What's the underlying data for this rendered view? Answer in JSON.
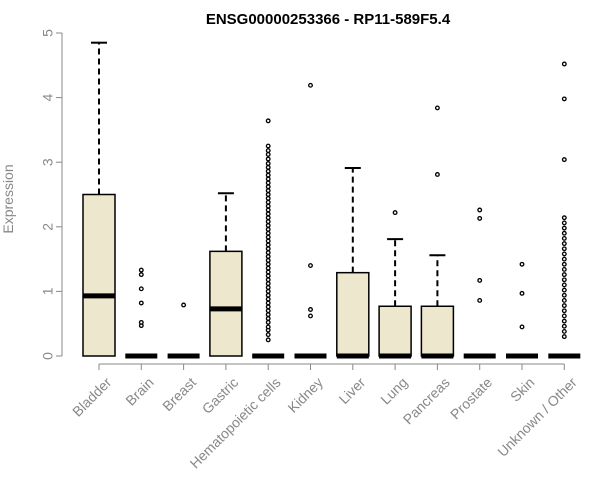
{
  "chart_data": {
    "type": "boxplot",
    "title": "ENSG00000253366 - RP11-589F5.4",
    "ylabel": "Expression",
    "xlabel": "",
    "ylim": [
      0,
      5
    ],
    "yticks": [
      0,
      1,
      2,
      3,
      4,
      5
    ],
    "box_color": "#ede7cd",
    "categories": [
      "Bladder",
      "Brain",
      "Breast",
      "Gastric",
      "Hematopoietic cells",
      "Kidney",
      "Liver",
      "Lung",
      "Pancreas",
      "Prostate",
      "Skin",
      "Unknown / Other"
    ],
    "boxes": [
      {
        "category": "Bladder",
        "q1": 0,
        "median": 0.93,
        "q3": 2.5,
        "whisker_low": 0,
        "whisker_high": 4.85,
        "outliers": []
      },
      {
        "category": "Brain",
        "q1": 0,
        "median": 0,
        "q3": 0,
        "whisker_low": 0,
        "whisker_high": 0,
        "outliers": [
          0.47,
          0.52,
          0.82,
          1.04,
          1.26,
          1.33
        ]
      },
      {
        "category": "Breast",
        "q1": 0,
        "median": 0,
        "q3": 0,
        "whisker_low": 0,
        "whisker_high": 0,
        "outliers": [
          0.79
        ]
      },
      {
        "category": "Gastric",
        "q1": 0,
        "median": 0.73,
        "q3": 1.62,
        "whisker_low": 0,
        "whisker_high": 2.52,
        "outliers": []
      },
      {
        "category": "Hematopoietic cells",
        "q1": 0,
        "median": 0,
        "q3": 0,
        "whisker_low": 0,
        "whisker_high": 0,
        "outliers": [
          0.25,
          0.33,
          0.4,
          0.45,
          0.52,
          0.58,
          0.64,
          0.7,
          0.76,
          0.82,
          0.88,
          0.94,
          1.0,
          1.06,
          1.12,
          1.18,
          1.24,
          1.3,
          1.36,
          1.42,
          1.48,
          1.54,
          1.6,
          1.66,
          1.72,
          1.78,
          1.84,
          1.9,
          1.96,
          2.02,
          2.08,
          2.14,
          2.2,
          2.26,
          2.32,
          2.38,
          2.44,
          2.5,
          2.56,
          2.62,
          2.68,
          2.74,
          2.8,
          2.86,
          2.92,
          2.98,
          3.05,
          3.12,
          3.18,
          3.25,
          3.64
        ]
      },
      {
        "category": "Kidney",
        "q1": 0,
        "median": 0,
        "q3": 0,
        "whisker_low": 0,
        "whisker_high": 0,
        "outliers": [
          0.62,
          0.72,
          1.4,
          4.19
        ]
      },
      {
        "category": "Liver",
        "q1": 0,
        "median": 0,
        "q3": 1.29,
        "whisker_low": 0,
        "whisker_high": 2.91,
        "outliers": []
      },
      {
        "category": "Lung",
        "q1": 0,
        "median": 0,
        "q3": 0.77,
        "whisker_low": 0,
        "whisker_high": 1.81,
        "outliers": [
          2.22
        ]
      },
      {
        "category": "Pancreas",
        "q1": 0,
        "median": 0,
        "q3": 0.77,
        "whisker_low": 0,
        "whisker_high": 1.56,
        "outliers": [
          2.81,
          3.84
        ]
      },
      {
        "category": "Prostate",
        "q1": 0,
        "median": 0,
        "q3": 0,
        "whisker_low": 0,
        "whisker_high": 0,
        "outliers": [
          0.86,
          1.17,
          2.13,
          2.26
        ]
      },
      {
        "category": "Skin",
        "q1": 0,
        "median": 0,
        "q3": 0,
        "whisker_low": 0,
        "whisker_high": 0,
        "outliers": [
          0.45,
          0.97,
          1.42
        ]
      },
      {
        "category": "Unknown / Other",
        "q1": 0,
        "median": 0,
        "q3": 0,
        "whisker_low": 0,
        "whisker_high": 0,
        "outliers": [
          0.3,
          0.38,
          0.46,
          0.54,
          0.62,
          0.7,
          0.78,
          0.86,
          0.94,
          1.02,
          1.1,
          1.18,
          1.26,
          1.34,
          1.42,
          1.5,
          1.58,
          1.66,
          1.74,
          1.82,
          1.9,
          1.98,
          2.06,
          2.14,
          3.04,
          3.98,
          4.52
        ]
      }
    ]
  }
}
